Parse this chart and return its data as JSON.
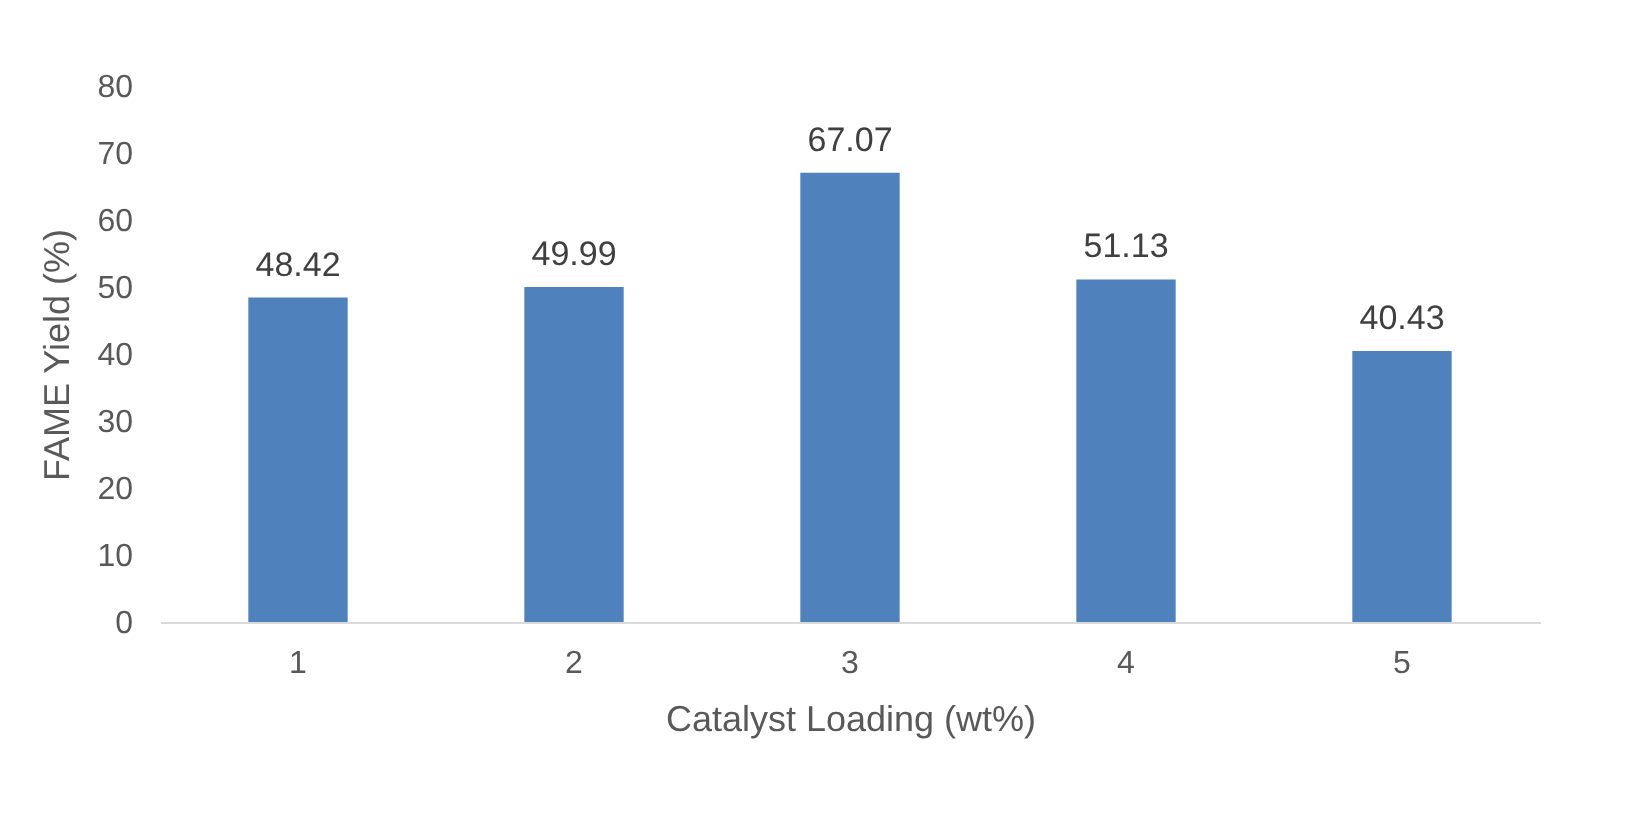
{
  "chart_data": {
    "type": "bar",
    "xlabel": "Catalyst Loading (wt%)",
    "ylabel": "FAME Yield (%)",
    "categories": [
      "1",
      "2",
      "3",
      "4",
      "5"
    ],
    "values": [
      48.42,
      49.99,
      67.07,
      51.13,
      40.43
    ],
    "color": "#4f81bd",
    "ylim": [
      0,
      80
    ],
    "yticks": [
      0,
      10,
      20,
      30,
      40,
      50,
      60,
      70,
      80
    ],
    "grid": false,
    "data_labels": true
  }
}
